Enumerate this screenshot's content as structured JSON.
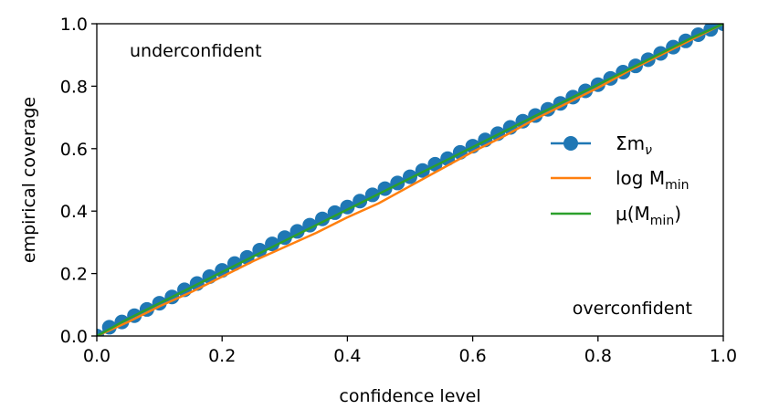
{
  "chart_data": {
    "type": "line",
    "title": "",
    "xlabel": "confidence level",
    "ylabel": "empirical coverage",
    "xlim": [
      0.0,
      1.0
    ],
    "ylim": [
      0.0,
      1.0
    ],
    "xticks": [
      0.0,
      0.2,
      0.4,
      0.6,
      0.8,
      1.0
    ],
    "yticks": [
      0.0,
      0.2,
      0.4,
      0.6,
      0.8,
      1.0
    ],
    "xtick_labels": [
      "0.0",
      "0.2",
      "0.4",
      "0.6",
      "0.8",
      "1.0"
    ],
    "ytick_labels": [
      "0.0",
      "0.2",
      "0.4",
      "0.6",
      "0.8",
      "1.0"
    ],
    "annotations": {
      "upper_left": "underconfident",
      "lower_right": "overconfident"
    },
    "legend_placement": "center-right",
    "colors": {
      "sum_m_nu": "#1f77b4",
      "log_m_min": "#ff7f0e",
      "mu_m_min": "#2ca02c"
    },
    "series": [
      {
        "name": "Σm_ν",
        "label_main": "Σm",
        "label_sub": "ν",
        "marker": "circle",
        "x": [
          0.0,
          0.02,
          0.04,
          0.06,
          0.08,
          0.1,
          0.12,
          0.14,
          0.16,
          0.18,
          0.2,
          0.22,
          0.24,
          0.26,
          0.28,
          0.3,
          0.32,
          0.34,
          0.36,
          0.38,
          0.4,
          0.42,
          0.44,
          0.46,
          0.48,
          0.5,
          0.52,
          0.54,
          0.56,
          0.58,
          0.6,
          0.62,
          0.64,
          0.66,
          0.68,
          0.7,
          0.72,
          0.74,
          0.76,
          0.78,
          0.8,
          0.82,
          0.84,
          0.86,
          0.88,
          0.9,
          0.92,
          0.94,
          0.96,
          0.98,
          1.0
        ],
        "y": [
          0.0,
          0.028,
          0.045,
          0.065,
          0.085,
          0.105,
          0.125,
          0.148,
          0.168,
          0.19,
          0.21,
          0.232,
          0.252,
          0.275,
          0.295,
          0.315,
          0.335,
          0.355,
          0.375,
          0.395,
          0.413,
          0.432,
          0.452,
          0.472,
          0.49,
          0.51,
          0.53,
          0.55,
          0.568,
          0.588,
          0.608,
          0.628,
          0.648,
          0.668,
          0.688,
          0.706,
          0.726,
          0.745,
          0.765,
          0.785,
          0.805,
          0.825,
          0.845,
          0.865,
          0.885,
          0.905,
          0.925,
          0.945,
          0.965,
          0.982,
          1.0
        ]
      },
      {
        "name": "log M_min",
        "label_main": "log M",
        "label_sub": "min",
        "marker": "none",
        "x": [
          0.0,
          0.05,
          0.1,
          0.15,
          0.2,
          0.25,
          0.3,
          0.35,
          0.4,
          0.45,
          0.5,
          0.55,
          0.6,
          0.65,
          0.7,
          0.75,
          0.8,
          0.85,
          0.9,
          0.95,
          1.0
        ],
        "y": [
          0.0,
          0.045,
          0.095,
          0.14,
          0.19,
          0.24,
          0.285,
          0.33,
          0.38,
          0.425,
          0.48,
          0.535,
          0.59,
          0.64,
          0.695,
          0.745,
          0.795,
          0.85,
          0.9,
          0.95,
          1.0
        ]
      },
      {
        "name": "μ(M_min)",
        "label_main": "μ(M",
        "label_sub": "min",
        "label_tail": ")",
        "marker": "none",
        "x": [
          0.0,
          0.05,
          0.1,
          0.15,
          0.2,
          0.25,
          0.3,
          0.35,
          0.4,
          0.45,
          0.5,
          0.55,
          0.6,
          0.65,
          0.7,
          0.75,
          0.8,
          0.85,
          0.9,
          0.95,
          1.0
        ],
        "y": [
          0.0,
          0.055,
          0.105,
          0.155,
          0.205,
          0.255,
          0.305,
          0.355,
          0.405,
          0.455,
          0.505,
          0.555,
          0.605,
          0.655,
          0.705,
          0.755,
          0.805,
          0.855,
          0.905,
          0.955,
          1.0
        ]
      }
    ]
  }
}
